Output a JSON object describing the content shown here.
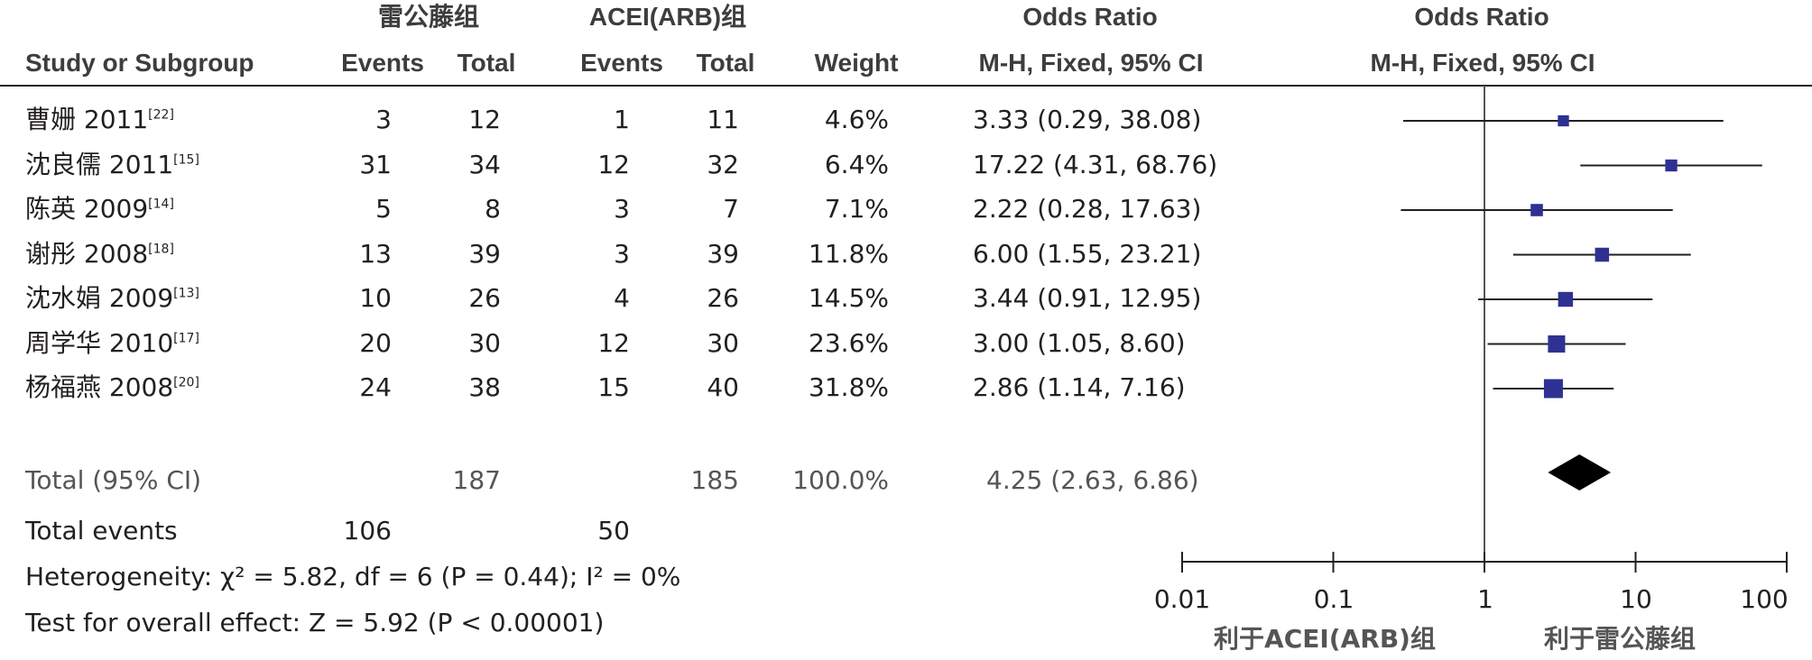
{
  "header": {
    "group1_label": "雷公藤组",
    "group2_label": "ACEI(ARB)组",
    "or_col_title": "Odds Ratio",
    "or_col_method": "M-H, Fixed, 95% CI",
    "plot_col_title": "Odds Ratio",
    "plot_col_method": "M-H, Fixed, 95% CI",
    "study_label": "Study or Subgroup",
    "events_label_1": "Events",
    "total_label_1": "Total",
    "events_label_2": "Events",
    "total_label_2": "Total",
    "weight_label": "Weight"
  },
  "studies": [
    {
      "name": "曹姗 2011",
      "ref": "[22]",
      "e1": "3",
      "t1": "12",
      "e2": "1",
      "t2": "11",
      "weight": "4.6%",
      "ci": "3.33 (0.29, 38.08)"
    },
    {
      "name": "沈良儒 2011",
      "ref": "[15]",
      "e1": "31",
      "t1": "34",
      "e2": "12",
      "t2": "32",
      "weight": "6.4%",
      "ci": "17.22 (4.31, 68.76)"
    },
    {
      "name": "陈英 2009",
      "ref": "[14]",
      "e1": "5",
      "t1": "8",
      "e2": "3",
      "t2": "7",
      "weight": "7.1%",
      "ci": "2.22 (0.28, 17.63)"
    },
    {
      "name": "谢彤 2008",
      "ref": "[18]",
      "e1": "13",
      "t1": "39",
      "e2": "3",
      "t2": "39",
      "weight": "11.8%",
      "ci": "6.00 (1.55, 23.21)"
    },
    {
      "name": "沈水娟 2009",
      "ref": "[13]",
      "e1": "10",
      "t1": "26",
      "e2": "4",
      "t2": "26",
      "weight": "14.5%",
      "ci": "3.44 (0.91, 12.95)"
    },
    {
      "name": "周学华 2010",
      "ref": "[17]",
      "e1": "20",
      "t1": "30",
      "e2": "12",
      "t2": "30",
      "weight": "23.6%",
      "ci": "3.00 (1.05, 8.60)"
    },
    {
      "name": "杨福燕 2008",
      "ref": "[20]",
      "e1": "24",
      "t1": "38",
      "e2": "15",
      "t2": "40",
      "weight": "31.8%",
      "ci": "2.86 (1.14, 7.16)"
    }
  ],
  "total": {
    "label": "Total (95% CI)",
    "t1": "187",
    "t2": "185",
    "weight": "100.0%",
    "ci": "4.25 (2.63, 6.86)"
  },
  "total_events": {
    "label": "Total events",
    "e1": "106",
    "e2": "50"
  },
  "heterogeneity": "Heterogeneity: χ² = 5.82, df = 6 (P = 0.44); I² = 0%",
  "overall_effect": "Test for overall effect: Z = 5.92 (P < 0.00001)",
  "axis": {
    "ticks": [
      "0.01",
      "0.1",
      "1",
      "10",
      "100"
    ],
    "favours_left": "利于ACEI(ARB)组",
    "favours_right": "利于雷公藤组"
  },
  "colors": {
    "marker": "#2e3192",
    "diamond": "#000000",
    "text": "#231f20"
  },
  "chart_data": {
    "type": "scatter",
    "x_scale": "log",
    "xlim": [
      0.01,
      100
    ],
    "null_line": 1,
    "points": [
      {
        "label": "曹姗 2011",
        "or": 3.33,
        "lo": 0.29,
        "hi": 38.08,
        "weight": 4.6
      },
      {
        "label": "沈良儒 2011",
        "or": 17.22,
        "lo": 4.31,
        "hi": 68.76,
        "weight": 6.4
      },
      {
        "label": "陈英 2009",
        "or": 2.22,
        "lo": 0.28,
        "hi": 17.63,
        "weight": 7.1
      },
      {
        "label": "谢彤 2008",
        "or": 6.0,
        "lo": 1.55,
        "hi": 23.21,
        "weight": 11.8
      },
      {
        "label": "沈水娟 2009",
        "or": 3.44,
        "lo": 0.91,
        "hi": 12.95,
        "weight": 14.5
      },
      {
        "label": "周学华 2010",
        "or": 3.0,
        "lo": 1.05,
        "hi": 8.6,
        "weight": 23.6
      },
      {
        "label": "杨福燕 2008",
        "or": 2.86,
        "lo": 1.14,
        "hi": 7.16,
        "weight": 31.8
      }
    ],
    "pooled": {
      "label": "Total (95% CI)",
      "or": 4.25,
      "lo": 2.63,
      "hi": 6.86
    }
  }
}
